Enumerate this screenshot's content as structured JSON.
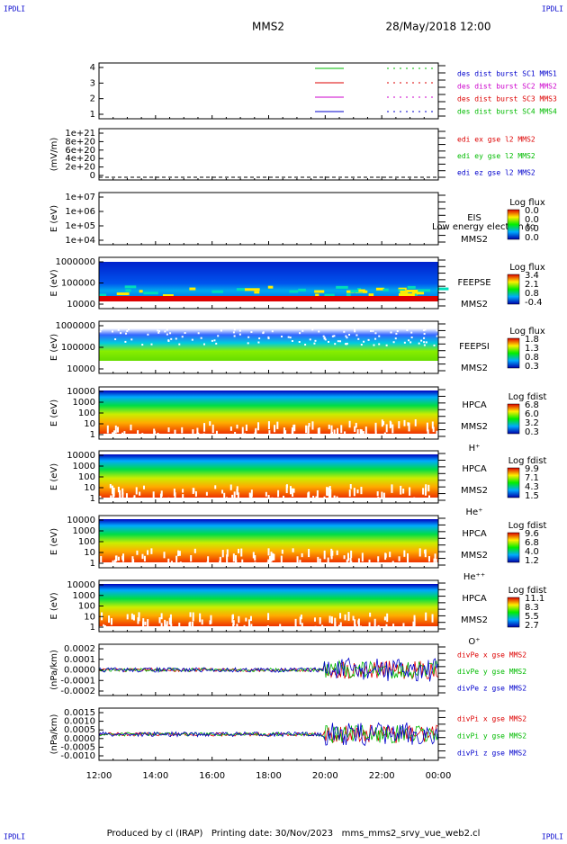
{
  "header": {
    "corner_left": "IPDLI",
    "corner_right": "IPDLI",
    "title": "MMS2",
    "date": "28/May/2018 12:00"
  },
  "panels": [
    {
      "kind": "lines",
      "top": 70,
      "bottom": 132,
      "ylabel": "",
      "yticks": [
        "4",
        "3",
        "2",
        "1"
      ],
      "legend": [
        {
          "text": "des dist burst SC1 MMS1",
          "color": "#0000cc"
        },
        {
          "text": "des dist burst SC2 MMS2",
          "color": "#cc00cc"
        },
        {
          "text": "des dist burst SC3 MMS3",
          "color": "#dd0000"
        },
        {
          "text": "des dist burst SC4 MMS4",
          "color": "#00bb00"
        }
      ]
    },
    {
      "kind": "empty",
      "top": 143,
      "bottom": 200,
      "ylabel": "(mV/m)",
      "yticks": [
        "1e+21",
        "8e+20",
        "6e+20",
        "4e+20",
        "2e+20",
        "0"
      ],
      "legend": [
        {
          "text": "edi ex gse l2 MMS2",
          "color": "#dd0000"
        },
        {
          "text": "edi ey gse l2 MMS2",
          "color": "#00bb00"
        },
        {
          "text": "edi ez gse l2 MMS2",
          "color": "#0000cc"
        }
      ]
    },
    {
      "kind": "blank",
      "top": 214,
      "bottom": 272,
      "ylabel": "E (eV)",
      "yticks": [
        "1e+07",
        "1e+06",
        "1e+05",
        "1e+04"
      ],
      "labels": [
        "EIS",
        "MMS2"
      ],
      "note": "Low energy electron to",
      "colorbar": {
        "title": "Log flux",
        "labels": [
          "0.0",
          "0.0",
          "0.0",
          "0.0"
        ]
      }
    },
    {
      "kind": "spec",
      "top": 286,
      "bottom": 343,
      "ylabel": "E (eV)",
      "yticks": [
        "1000000",
        "100000",
        "10000"
      ],
      "labels": [
        "FEEPSE",
        "MMS2"
      ],
      "colorbar": {
        "title": "Log flux",
        "labels": [
          "3.4",
          "2.1",
          "0.8",
          "-0.4"
        ]
      }
    },
    {
      "kind": "spec2",
      "top": 357,
      "bottom": 415,
      "ylabel": "E (eV)",
      "yticks": [
        "1000000",
        "100000",
        "10000"
      ],
      "labels": [
        "FEEPSI",
        "MMS2"
      ],
      "colorbar": {
        "title": "Log flux",
        "labels": [
          "1.8",
          "1.3",
          "0.8",
          "0.3"
        ]
      }
    },
    {
      "kind": "hpca",
      "top": 430,
      "bottom": 488,
      "ylabel": "E (eV)",
      "yticks": [
        "10000",
        "1000",
        "100",
        "10",
        "1"
      ],
      "labels": [
        "HPCA",
        "MMS2",
        "H⁺"
      ],
      "colorbar": {
        "title": "Log fdist",
        "labels": [
          "6.8",
          "6.0",
          "3.2",
          "0.3"
        ]
      }
    },
    {
      "kind": "hpca",
      "top": 501,
      "bottom": 559,
      "ylabel": "E (eV)",
      "yticks": [
        "10000",
        "1000",
        "100",
        "10",
        "1"
      ],
      "labels": [
        "HPCA",
        "MMS2",
        "He⁺"
      ],
      "colorbar": {
        "title": "Log fdist",
        "labels": [
          "9.9",
          "7.1",
          "4.3",
          "1.5"
        ]
      }
    },
    {
      "kind": "hpca",
      "top": 573,
      "bottom": 631,
      "ylabel": "E (eV)",
      "yticks": [
        "10000",
        "1000",
        "100",
        "10",
        "1"
      ],
      "labels": [
        "HPCA",
        "MMS2",
        "He⁺⁺"
      ],
      "colorbar": {
        "title": "Log fdist",
        "labels": [
          "9.6",
          "6.8",
          "4.0",
          "1.2"
        ]
      }
    },
    {
      "kind": "hpca",
      "top": 645,
      "bottom": 702,
      "ylabel": "E (eV)",
      "yticks": [
        "10000",
        "1000",
        "100",
        "10",
        "1"
      ],
      "labels": [
        "HPCA",
        "MMS2",
        "O⁺"
      ],
      "colorbar": {
        "title": "Log fdist",
        "labels": [
          "11.1",
          "8.3",
          "5.5",
          "2.7"
        ]
      }
    },
    {
      "kind": "noise",
      "top": 716,
      "bottom": 773,
      "ylabel": "(nPa/km)",
      "yticks": [
        "0.0002",
        "0.0001",
        "0.0000",
        "-0.0001",
        "-0.0002"
      ],
      "legend": [
        {
          "text": "divPe x gse MMS2",
          "color": "#dd0000"
        },
        {
          "text": "divPe y gse MMS2",
          "color": "#00bb00"
        },
        {
          "text": "divPe z gse MMS2",
          "color": "#0000cc"
        }
      ]
    },
    {
      "kind": "noise",
      "top": 787,
      "bottom": 845,
      "ylabel": "(nPa/km)",
      "yticks": [
        "0.0015",
        "0.0010",
        "0.0005",
        "0.0000",
        "-0.0005",
        "-0.0010"
      ],
      "legend": [
        {
          "text": "divPi x gse MMS2",
          "color": "#dd0000"
        },
        {
          "text": "divPi y gse MMS2",
          "color": "#00bb00"
        },
        {
          "text": "divPi z gse MMS2",
          "color": "#0000cc"
        }
      ]
    }
  ],
  "xticks": [
    "12:00",
    "14:00",
    "16:00",
    "18:00",
    "20:00",
    "22:00",
    "00:00"
  ],
  "footer": {
    "text": "Produced by cl (IRAP)   Printing date: 30/Nov/2023   mms_mms2_srvy_vue_web2.cl",
    "corner_left": "IPDLI",
    "corner_right": "IPDLI"
  }
}
